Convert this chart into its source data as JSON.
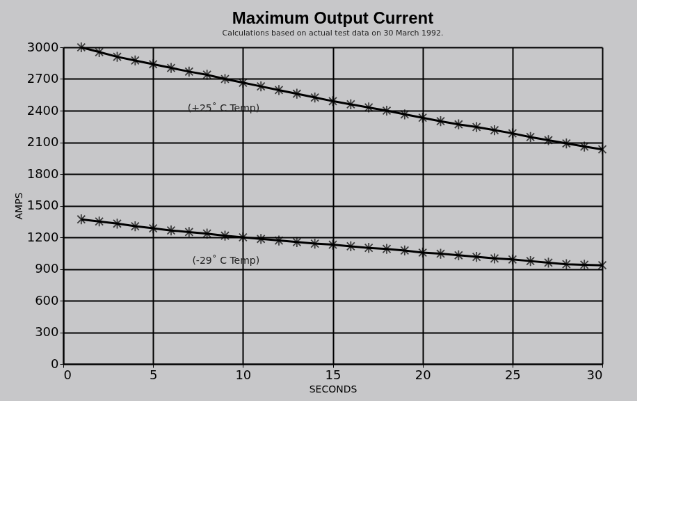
{
  "chart_data": {
    "type": "line",
    "title": "Maximum Output Current",
    "xlabel": "SECONDS",
    "ylabel": "AMPS",
    "x": [
      1,
      2,
      3,
      4,
      5,
      6,
      7,
      8,
      9,
      10,
      11,
      12,
      13,
      14,
      15,
      16,
      17,
      18,
      19,
      20,
      21,
      22,
      23,
      24,
      25,
      26,
      27,
      28,
      29,
      30
    ],
    "series": [
      {
        "name": "(+25˚ C Temp)",
        "color": "#000000",
        "values": [
          3000,
          2955,
          2910,
          2875,
          2840,
          2805,
          2770,
          2740,
          2700,
          2665,
          2630,
          2595,
          2560,
          2525,
          2490,
          2460,
          2430,
          2400,
          2365,
          2333,
          2300,
          2270,
          2245,
          2215,
          2185,
          2150,
          2120,
          2090,
          2060,
          2033
        ]
      },
      {
        "name": "(-29˚ C Temp)",
        "color": "#000000",
        "values": [
          1370,
          1350,
          1330,
          1305,
          1285,
          1265,
          1250,
          1235,
          1215,
          1200,
          1185,
          1170,
          1155,
          1140,
          1130,
          1115,
          1100,
          1090,
          1075,
          1055,
          1045,
          1030,
          1015,
          1000,
          990,
          975,
          960,
          945,
          940,
          935
        ]
      }
    ],
    "xlim": [
      0,
      30
    ],
    "xticks": [
      0,
      5,
      10,
      15,
      20,
      25,
      30
    ],
    "ylim": [
      0,
      3000
    ],
    "yticks": [
      0,
      300,
      600,
      900,
      1200,
      1500,
      1800,
      2100,
      2400,
      2700,
      3000
    ],
    "grid": true,
    "marker": "cross",
    "line_style": "solid",
    "legend": false,
    "annotations": [
      "Calculations based on actual test data on 30 March 1992."
    ]
  }
}
